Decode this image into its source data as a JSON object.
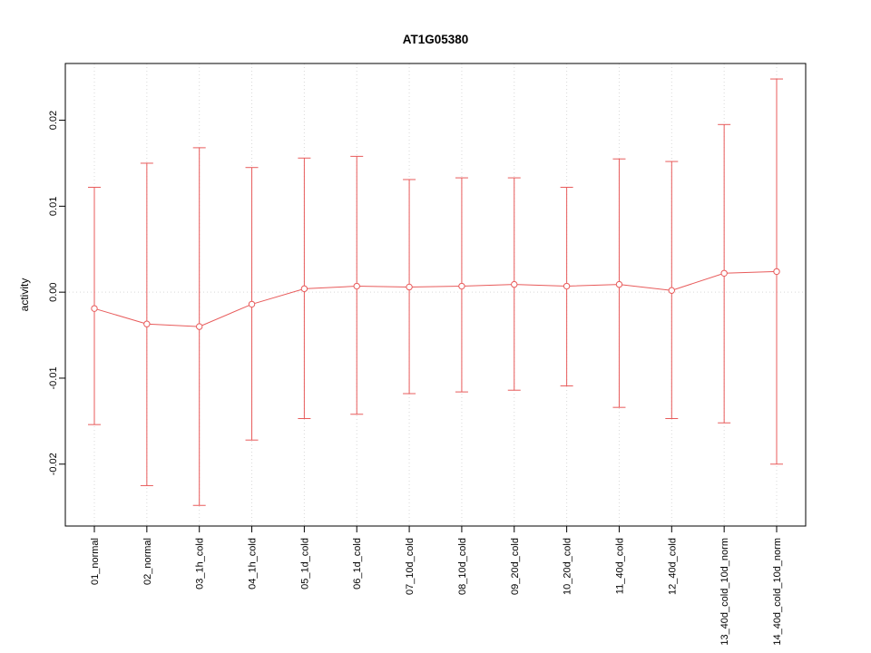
{
  "chart_data": {
    "type": "line",
    "title": "AT1G05380",
    "ylabel": "activity",
    "xlabel": "",
    "ylim": [
      -0.0272,
      0.0266
    ],
    "yticks": [
      -0.02,
      -0.01,
      0,
      0.01,
      0.02
    ],
    "ytick_labels": [
      "-0.02",
      "-0.01",
      "0.00",
      "0.01",
      "0.02"
    ],
    "grid": true,
    "zero_line": true,
    "legend": "none",
    "colors": {
      "series": "#e85b5b",
      "grid": "#d9d9d9",
      "axis": "#000000",
      "background": "#ffffff"
    },
    "categories": [
      "01_normal",
      "02_normal",
      "03_1h_cold",
      "04_1h_cold",
      "05_1d_cold",
      "06_1d_cold",
      "07_10d_cold",
      "08_10d_cold",
      "09_20d_cold",
      "10_20d_cold",
      "11_40d_cold",
      "12_40d_cold",
      "13_40d_cold_10d_norm",
      "14_40d_cold_10d_norm"
    ],
    "points": [
      {
        "label": "01_normal",
        "mean": -0.0019,
        "lower": -0.0154,
        "upper": 0.0122
      },
      {
        "label": "02_normal",
        "mean": -0.0037,
        "lower": -0.0225,
        "upper": 0.015
      },
      {
        "label": "03_1h_cold",
        "mean": -0.004,
        "lower": -0.0248,
        "upper": 0.0168
      },
      {
        "label": "04_1h_cold",
        "mean": -0.0014,
        "lower": -0.0172,
        "upper": 0.0145
      },
      {
        "label": "05_1d_cold",
        "mean": 0.0004,
        "lower": -0.0147,
        "upper": 0.0156
      },
      {
        "label": "06_1d_cold",
        "mean": 0.0007,
        "lower": -0.0142,
        "upper": 0.0158
      },
      {
        "label": "07_10d_cold",
        "mean": 0.0006,
        "lower": -0.0118,
        "upper": 0.0131
      },
      {
        "label": "08_10d_cold",
        "mean": 0.0007,
        "lower": -0.0116,
        "upper": 0.0133
      },
      {
        "label": "09_20d_cold",
        "mean": 0.0009,
        "lower": -0.0114,
        "upper": 0.0133
      },
      {
        "label": "10_20d_cold",
        "mean": 0.0007,
        "lower": -0.0109,
        "upper": 0.0122
      },
      {
        "label": "11_40d_cold",
        "mean": 0.0009,
        "lower": -0.0134,
        "upper": 0.0155
      },
      {
        "label": "12_40d_cold",
        "mean": 0.0002,
        "lower": -0.0147,
        "upper": 0.0152
      },
      {
        "label": "13_40d_cold_10d_norm",
        "mean": 0.0022,
        "lower": -0.0152,
        "upper": 0.0195
      },
      {
        "label": "14_40d_cold_10d_norm",
        "mean": 0.0024,
        "lower": -0.02,
        "upper": 0.0248
      }
    ]
  }
}
